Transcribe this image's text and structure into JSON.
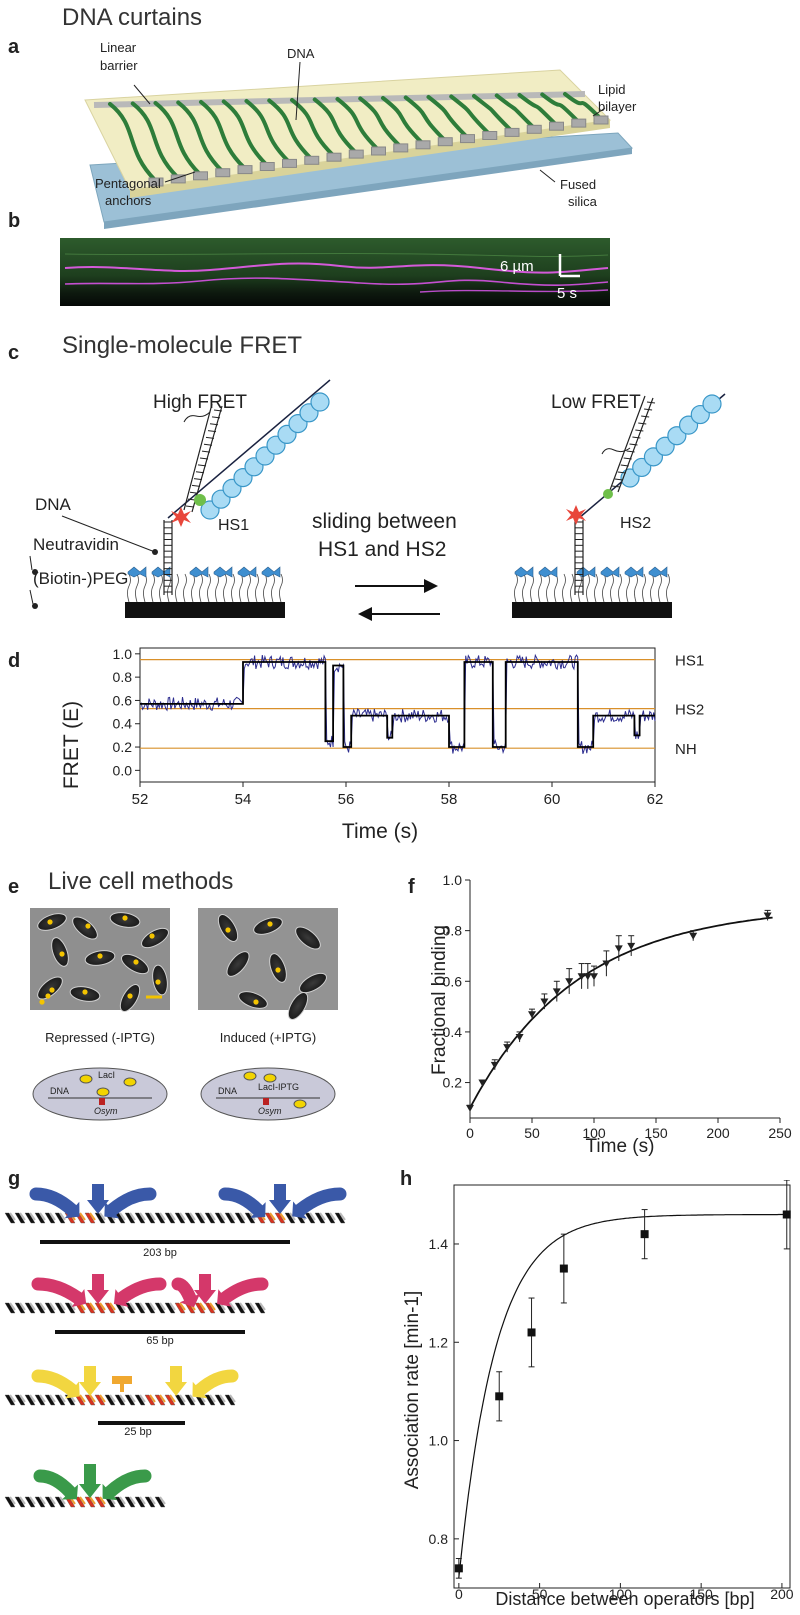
{
  "panel_a": {
    "letter": "a",
    "section_title": "DNA curtains",
    "labels": {
      "linear_barrier": [
        "Linear",
        "barrier"
      ],
      "dna": "DNA",
      "lipid_bilayer": [
        "Lipid",
        "bilayer"
      ],
      "pentagonal_anchors": [
        "Pentagonal",
        "anchors"
      ],
      "fused_silica": [
        "Fused",
        "silica"
      ]
    }
  },
  "panel_b": {
    "letter": "b",
    "scale_y": "6 µm",
    "scale_x": "5 s"
  },
  "panel_c": {
    "letter": "c",
    "section_title": "Single-molecule FRET",
    "high_fret": "High FRET",
    "low_fret": "Low FRET",
    "hs1": "HS1",
    "hs2": "HS2",
    "sliding_line1": "sliding between",
    "sliding_line2": "HS1 and HS2",
    "dna": "DNA",
    "neutravidin": "Neutravidin",
    "peg": "(Biotin-)PEG"
  },
  "panel_d": {
    "letter": "d",
    "chart_data": {
      "type": "line",
      "xlabel": "Time (s)",
      "ylabel": "FRET (E)",
      "xlim": [
        52,
        62
      ],
      "ylim": [
        -0.1,
        1.05
      ],
      "xticks": [
        "52",
        "54",
        "56",
        "58",
        "60",
        "62"
      ],
      "yticks": [
        "0.0",
        "0.2",
        "0.4",
        "0.6",
        "0.8",
        "1.0"
      ],
      "levels": [
        {
          "name": "HS1",
          "value": 0.95
        },
        {
          "name": "HS2",
          "value": 0.53
        },
        {
          "name": "NH",
          "value": 0.19
        }
      ],
      "idealized_steps": [
        [
          52.0,
          0.57
        ],
        [
          54.0,
          0.57
        ],
        [
          54.0,
          0.93
        ],
        [
          55.6,
          0.93
        ],
        [
          55.6,
          0.25
        ],
        [
          55.75,
          0.25
        ],
        [
          55.75,
          0.9
        ],
        [
          55.95,
          0.9
        ],
        [
          55.95,
          0.2
        ],
        [
          56.1,
          0.2
        ],
        [
          56.1,
          0.47
        ],
        [
          56.8,
          0.47
        ],
        [
          56.8,
          0.28
        ],
        [
          56.9,
          0.28
        ],
        [
          56.9,
          0.47
        ],
        [
          58.0,
          0.47
        ],
        [
          58.0,
          0.2
        ],
        [
          58.3,
          0.2
        ],
        [
          58.3,
          0.93
        ],
        [
          58.85,
          0.93
        ],
        [
          58.85,
          0.2
        ],
        [
          59.1,
          0.2
        ],
        [
          59.1,
          0.93
        ],
        [
          60.5,
          0.93
        ],
        [
          60.5,
          0.2
        ],
        [
          60.8,
          0.2
        ],
        [
          60.8,
          0.47
        ],
        [
          61.6,
          0.47
        ],
        [
          61.6,
          0.3
        ],
        [
          61.7,
          0.3
        ],
        [
          61.7,
          0.47
        ],
        [
          62.0,
          0.47
        ]
      ]
    }
  },
  "panel_e": {
    "letter": "e",
    "section_title": "Live cell methods",
    "repressed": "Repressed (-IPTG)",
    "induced": "Induced (+IPTG)",
    "laci": "LacI",
    "laci_iptg": "LacI-IPTG",
    "dna": "DNA",
    "osym": "Osym"
  },
  "panel_f": {
    "letter": "f",
    "chart_data": {
      "type": "scatter",
      "xlabel": "Time (s)",
      "ylabel": "Fractional binding",
      "xlim": [
        0,
        250
      ],
      "ylim": [
        0.1,
        1.0
      ],
      "xticks": [
        "0",
        "50",
        "100",
        "150",
        "200",
        "250"
      ],
      "yticks": [
        "0.2",
        "0.4",
        "0.6",
        "0.8",
        "1.0"
      ],
      "x": [
        0,
        10,
        20,
        30,
        40,
        50,
        60,
        70,
        80,
        90,
        95,
        100,
        110,
        120,
        130,
        180,
        240
      ],
      "y": [
        0.1,
        0.2,
        0.27,
        0.34,
        0.38,
        0.47,
        0.52,
        0.56,
        0.6,
        0.62,
        0.62,
        0.62,
        0.67,
        0.73,
        0.74,
        0.78,
        0.86
      ],
      "err": [
        0.01,
        0.01,
        0.02,
        0.02,
        0.02,
        0.02,
        0.03,
        0.04,
        0.05,
        0.05,
        0.05,
        0.04,
        0.05,
        0.05,
        0.04,
        0.02,
        0.02
      ],
      "fit": {
        "a": 0.1,
        "b": 0.8,
        "k": 0.0115
      }
    }
  },
  "panel_g": {
    "letter": "g",
    "spacings": [
      "203 bp",
      "65 bp",
      "25 bp"
    ]
  },
  "panel_h": {
    "letter": "h",
    "chart_data": {
      "type": "scatter",
      "xlabel": "Distance between operators [bp]",
      "ylabel": "Association rate [min-1]",
      "xlim": [
        -3,
        205
      ],
      "ylim": [
        0.7,
        1.52
      ],
      "xticks": [
        "0",
        "50",
        "100",
        "150",
        "200"
      ],
      "yticks": [
        "0.8",
        "1.0",
        "1.2",
        "1.4"
      ],
      "x": [
        0,
        25,
        45,
        65,
        115,
        203
      ],
      "y": [
        0.74,
        1.09,
        1.22,
        1.35,
        1.42,
        1.46
      ],
      "err": [
        0.02,
        0.05,
        0.07,
        0.07,
        0.05,
        0.07
      ],
      "fit": {
        "a": 0.72,
        "b": 0.74,
        "k": 0.044
      }
    }
  }
}
